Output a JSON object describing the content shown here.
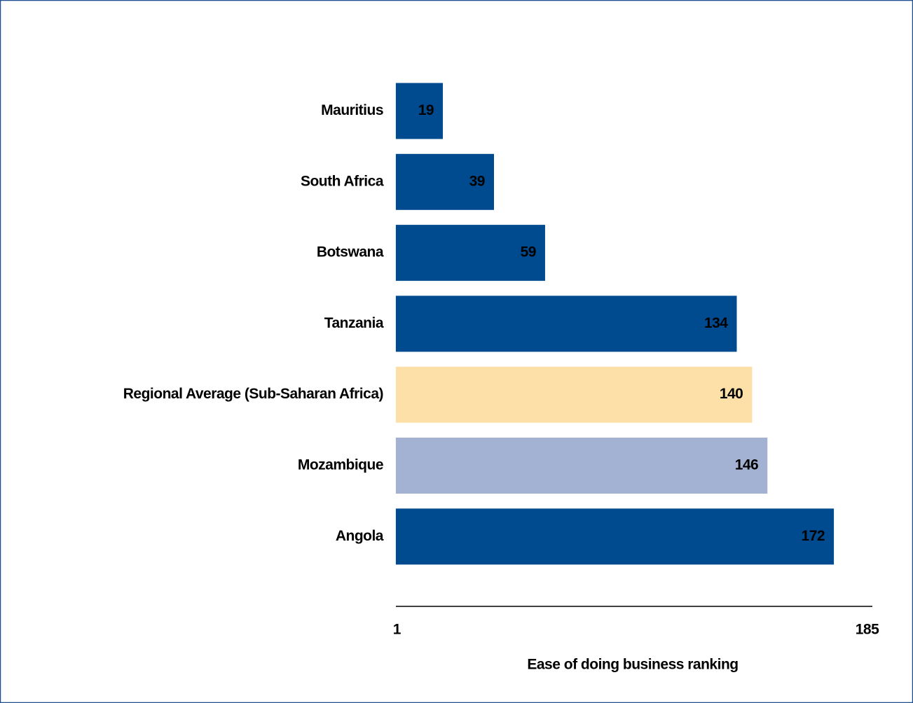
{
  "chart_data": {
    "type": "bar",
    "orientation": "horizontal",
    "categories": [
      "Mauritius",
      "South Africa",
      "Botswana",
      "Tanzania",
      "Regional Average (Sub-Saharan Africa)",
      "Mozambique",
      "Angola"
    ],
    "values": [
      19,
      39,
      59,
      134,
      140,
      146,
      172
    ],
    "colors": [
      "#004a8f",
      "#004a8f",
      "#004a8f",
      "#004a8f",
      "#fde0a8",
      "#a3b1d3",
      "#004a8f"
    ],
    "xlim": [
      1,
      185
    ],
    "xticks": [
      1,
      185
    ],
    "x_label": "Ease of doing business ranking",
    "grid": false
  }
}
